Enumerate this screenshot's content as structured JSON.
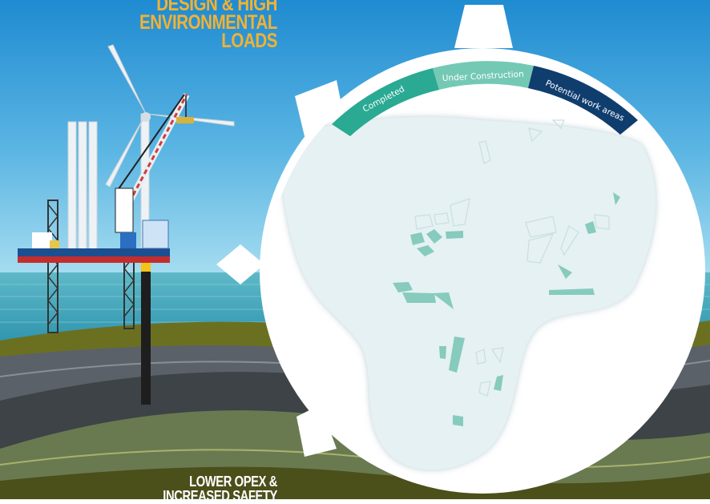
{
  "headings": {
    "top_line1": "DESIGN & HIGH",
    "top_line2": "ENVIRONMENTAL",
    "top_line3": "LOADS",
    "bottom_line1": "LOWER OPEX &",
    "bottom_line2": "INCREASED SAFETY"
  },
  "legend": {
    "completed": "Completed",
    "under_construction": "Under Construction",
    "potential": "Potential work areas"
  },
  "colors": {
    "heading": "#f2b233",
    "completed": "#2aa993",
    "under_construction": "#74c9b5",
    "potential": "#0f3d6e",
    "sea_fill": "#e5f1f2",
    "wind_farm_fill": "#86cbbd"
  }
}
